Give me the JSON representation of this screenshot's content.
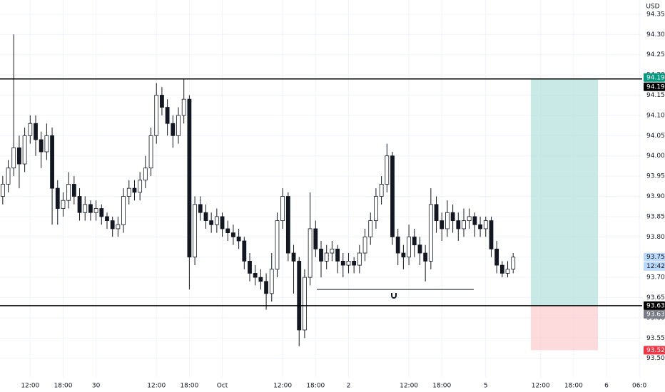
{
  "chart_data": {
    "type": "candlestick",
    "currency": "USD",
    "ylim": [
      93.452,
      94.385
    ],
    "yticks": [
      94.35,
      {
        "value": 94.3,
        "label": "94.30"
      },
      94.25,
      {
        "value": 94.2,
        "label": "94.20"
      },
      94.15,
      {
        "value": 94.1,
        "label": "94.10"
      },
      94.05,
      {
        "value": 94.0,
        "label": "94.00"
      },
      93.95,
      {
        "value": 93.9,
        "label": "93.90"
      },
      93.85,
      {
        "value": 93.8,
        "label": "93.80"
      },
      93.75,
      {
        "value": 93.7,
        "label": "93.70"
      },
      93.65,
      {
        "value": 93.6,
        "label": "93.60"
      },
      93.55,
      {
        "value": 93.5,
        "label": "93.50"
      }
    ],
    "grid": true,
    "up_color": "#ffffff",
    "down_color": "#131722",
    "outline_color": "#131722",
    "categories": [
      null,
      null,
      null,
      null,
      null,
      "12:00",
      null,
      null,
      null,
      null,
      null,
      "18:00",
      null,
      null,
      null,
      null,
      null,
      "30",
      null,
      null,
      null,
      null,
      null,
      null,
      null,
      null,
      null,
      null,
      "12:00",
      null,
      null,
      null,
      null,
      null,
      "18:00",
      null,
      null,
      null,
      null,
      null,
      "Oct",
      null,
      null,
      null,
      null,
      null,
      null,
      null,
      null,
      null,
      null,
      "12:00",
      null,
      null,
      null,
      null,
      null,
      "18:00",
      null,
      null,
      null,
      null,
      null,
      "2",
      null,
      null,
      null,
      null,
      null,
      null,
      null,
      null,
      null,
      null,
      "12:00",
      null,
      null,
      null,
      null,
      null,
      "18:00",
      null,
      null,
      null,
      null,
      null,
      null,
      null,
      "5",
      null,
      null,
      null,
      null,
      null,
      null,
      null,
      null,
      null,
      "12:00",
      null,
      null,
      null,
      null,
      null,
      "18:00",
      null,
      null,
      null,
      null,
      null,
      "6",
      null,
      null,
      null,
      null,
      null,
      "06:0"
    ],
    "open": [
      93.9,
      93.93,
      93.97,
      94.02,
      93.98,
      94.05,
      94.08,
      94.04,
      94.01,
      94.05,
      93.92,
      93.87,
      93.89,
      93.93,
      93.9,
      93.86,
      93.88,
      93.86,
      93.87,
      93.85,
      93.84,
      93.82,
      93.83,
      93.9,
      93.92,
      93.91,
      93.94,
      93.97,
      94.05,
      94.15,
      94.12,
      94.08,
      94.05,
      94.1,
      94.14,
      93.75,
      93.88,
      93.86,
      93.84,
      93.83,
      93.85,
      93.82,
      93.81,
      93.8,
      93.79,
      93.74,
      93.71,
      93.7,
      93.69,
      93.66,
      93.72,
      93.84,
      93.9,
      93.76,
      93.74,
      93.57,
      93.7,
      93.82,
      93.77,
      93.74,
      93.76,
      93.77,
      93.74,
      93.73,
      93.74,
      93.73,
      93.76,
      93.8,
      93.84,
      93.9,
      93.93,
      94.0,
      93.8,
      93.76,
      93.75,
      93.8,
      93.78,
      93.76,
      93.74,
      93.88,
      93.84,
      93.82,
      93.86,
      93.84,
      93.82,
      93.84,
      93.85,
      93.83,
      93.82,
      93.84,
      93.77,
      93.73,
      93.71,
      93.72,
      null,
      null,
      null,
      null,
      null,
      null,
      null,
      null,
      null,
      null,
      null,
      null,
      null,
      null,
      null,
      null,
      null,
      null,
      null,
      null,
      null,
      null,
      null
    ],
    "high": [
      93.95,
      93.99,
      94.3,
      94.05,
      94.07,
      94.1,
      94.1,
      94.06,
      94.08,
      94.07,
      93.94,
      93.91,
      93.96,
      93.95,
      93.92,
      93.9,
      93.89,
      93.89,
      93.88,
      93.86,
      93.85,
      93.85,
      93.92,
      93.94,
      93.94,
      93.96,
      94.0,
      94.07,
      94.18,
      94.17,
      94.14,
      94.1,
      94.12,
      94.19,
      94.15,
      93.9,
      93.9,
      93.88,
      93.86,
      93.87,
      93.86,
      93.84,
      93.83,
      93.82,
      93.8,
      93.76,
      93.73,
      93.72,
      93.71,
      93.76,
      93.86,
      93.92,
      93.91,
      93.78,
      93.75,
      93.72,
      93.91,
      93.84,
      93.79,
      93.78,
      93.79,
      93.78,
      93.76,
      93.76,
      93.75,
      93.78,
      93.82,
      93.86,
      93.92,
      93.95,
      94.03,
      94.01,
      93.82,
      93.78,
      93.83,
      93.82,
      93.8,
      93.78,
      93.92,
      93.9,
      93.86,
      93.89,
      93.88,
      93.86,
      93.87,
      93.87,
      93.86,
      93.85,
      93.85,
      93.85,
      93.79,
      93.74,
      93.74,
      93.76,
      null,
      null,
      null,
      null,
      null,
      null,
      null,
      null,
      null,
      null,
      null,
      null,
      null,
      null,
      null,
      null,
      null,
      null,
      null,
      null,
      null,
      null,
      null
    ],
    "low": [
      93.88,
      93.91,
      93.95,
      93.92,
      93.96,
      94.03,
      94.0,
      93.97,
      93.99,
      93.83,
      93.83,
      93.85,
      93.87,
      93.88,
      93.84,
      93.84,
      93.84,
      93.84,
      93.83,
      93.82,
      93.8,
      93.8,
      93.81,
      93.88,
      93.89,
      93.89,
      93.92,
      93.95,
      94.03,
      94.1,
      94.05,
      94.02,
      94.03,
      94.08,
      93.67,
      93.73,
      93.84,
      93.82,
      93.81,
      93.81,
      93.8,
      93.79,
      93.78,
      93.77,
      93.72,
      93.69,
      93.68,
      93.67,
      93.62,
      93.64,
      93.7,
      93.82,
      93.74,
      93.66,
      93.53,
      93.55,
      93.68,
      93.75,
      93.7,
      93.72,
      93.74,
      93.71,
      93.7,
      93.71,
      93.71,
      93.71,
      93.74,
      93.78,
      93.82,
      93.88,
      93.91,
      93.78,
      93.73,
      93.72,
      93.73,
      93.75,
      93.73,
      93.69,
      93.72,
      93.81,
      93.79,
      93.8,
      93.81,
      93.79,
      93.8,
      93.82,
      93.8,
      93.8,
      93.8,
      93.75,
      93.71,
      93.7,
      93.7,
      93.71,
      null,
      null,
      null,
      null,
      null,
      null,
      null,
      null,
      null,
      null,
      null,
      null,
      null,
      null,
      null,
      null,
      null,
      null,
      null,
      null,
      null,
      null,
      null
    ],
    "close": [
      93.93,
      93.97,
      94.02,
      93.98,
      94.05,
      94.08,
      94.04,
      94.01,
      94.05,
      93.92,
      93.87,
      93.89,
      93.93,
      93.9,
      93.86,
      93.88,
      93.86,
      93.87,
      93.85,
      93.84,
      93.82,
      93.83,
      93.9,
      93.92,
      93.91,
      93.94,
      93.97,
      94.05,
      94.15,
      94.12,
      94.08,
      94.05,
      94.1,
      94.14,
      93.75,
      93.88,
      93.86,
      93.84,
      93.83,
      93.85,
      93.82,
      93.81,
      93.8,
      93.79,
      93.74,
      93.71,
      93.7,
      93.69,
      93.66,
      93.72,
      93.84,
      93.9,
      93.76,
      93.74,
      93.57,
      93.7,
      93.82,
      93.77,
      93.74,
      93.76,
      93.77,
      93.74,
      93.73,
      93.74,
      93.73,
      93.76,
      93.8,
      93.84,
      93.9,
      93.93,
      94.0,
      93.8,
      93.76,
      93.75,
      93.8,
      93.78,
      93.76,
      93.74,
      93.88,
      93.84,
      93.82,
      93.86,
      93.84,
      93.82,
      93.84,
      93.85,
      93.83,
      93.82,
      93.84,
      93.77,
      93.73,
      93.71,
      93.72,
      93.75,
      null,
      null,
      null,
      null,
      null,
      null,
      null,
      null,
      null,
      null,
      null,
      null,
      null,
      null,
      null,
      null,
      null,
      null,
      null,
      null,
      null,
      null,
      null
    ],
    "price_lines": [
      {
        "value": 94.19,
        "label": "94.19"
      },
      {
        "value": 93.63,
        "label": "93.63"
      }
    ],
    "position": {
      "target": {
        "value": 94.19,
        "label": "94.19"
      },
      "entry": {
        "value": 93.63,
        "label": "93.63"
      },
      "stop": {
        "value": 93.52,
        "label": "93.52"
      },
      "profit_color": "#b2dfdb",
      "loss_color": "#fccbcd"
    },
    "level": 93.67,
    "last_price": {
      "value": 93.75,
      "label": "93.75"
    },
    "countdown": "12:42"
  }
}
